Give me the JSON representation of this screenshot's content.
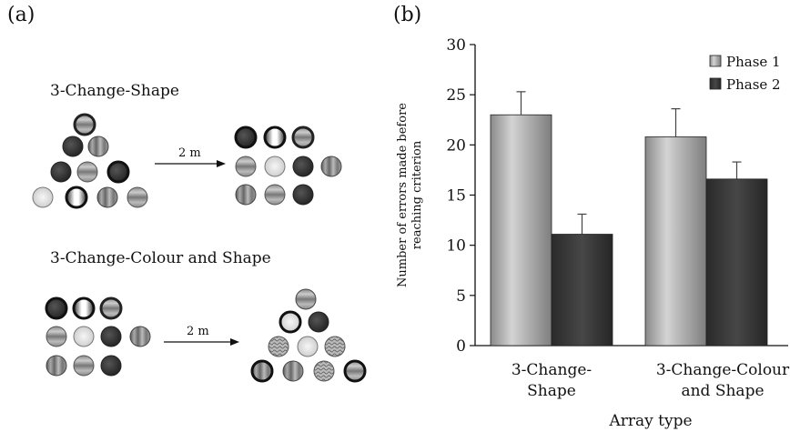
{
  "panel_a": {
    "label": "(a)",
    "conditions": [
      {
        "title": "3-Change-Shape",
        "delay_label": "2 m"
      },
      {
        "title": "3-Change-Colour and Shape",
        "delay_label": "2 m"
      }
    ]
  },
  "panel_b": {
    "label": "(b)"
  },
  "chart_data": {
    "type": "bar",
    "categories": [
      "3-Change-Shape",
      "3-Change-Colour and Shape"
    ],
    "category_lines": [
      [
        "3-Change-",
        "Shape"
      ],
      [
        "3-Change-Colour",
        "and Shape"
      ]
    ],
    "series": [
      {
        "name": "Phase 1",
        "values": [
          23.0,
          20.8
        ],
        "errors": [
          2.3,
          2.8
        ],
        "color": "#a9a9a9"
      },
      {
        "name": "Phase 2",
        "values": [
          11.1,
          16.6
        ],
        "errors": [
          2.0,
          1.7
        ],
        "color": "#333333"
      }
    ],
    "xlabel": "Array type",
    "ylabel_lines": [
      "Number of errors made before",
      "reaching criterion"
    ],
    "ylim": [
      0,
      30
    ],
    "yticks": [
      0,
      5,
      10,
      15,
      20,
      25,
      30
    ],
    "legend_position": "top-right",
    "grid": false
  }
}
